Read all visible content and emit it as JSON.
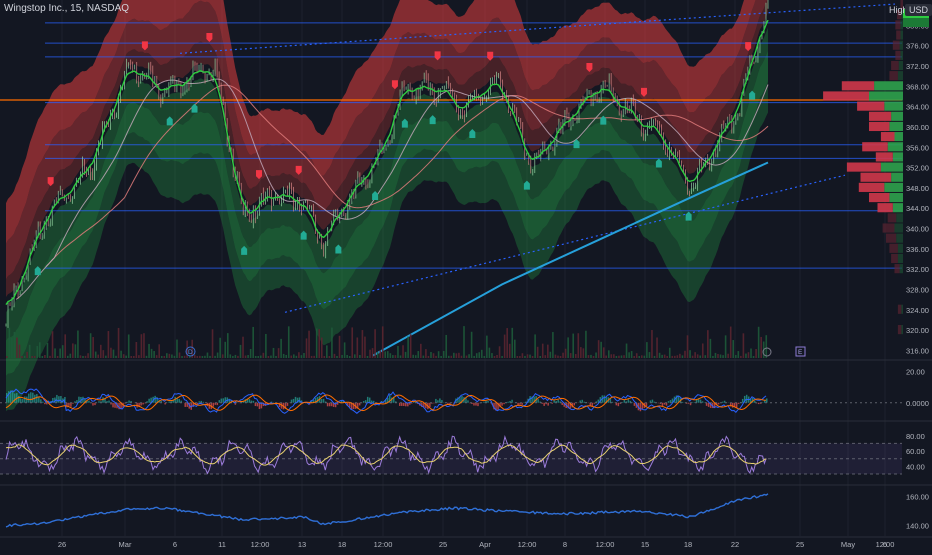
{
  "symbol": {
    "title": "Wingstop Inc., 15, NASDAQ"
  },
  "scale_buttons": {
    "high": "High",
    "currency": "USD"
  },
  "colors": {
    "background": "#131722",
    "grid": "#1e222d",
    "price": "#2ecc40",
    "upper_band": "#e03e3e",
    "lower_band": "#26a64a",
    "trendline": "#4f8fdb",
    "level_line": "#2962ff",
    "orange_level": "#ff6d00",
    "rsi": "#9c7cdb",
    "rsi_signal": "#e8d16f",
    "obv": "#2f6fd6",
    "ma_slow": "#e07b7b",
    "ma_mid": "#c0a6b7",
    "ma_long": "#26a0da"
  },
  "time_axis": {
    "labels": [
      "26",
      "Mar",
      "6",
      "11",
      "12:00",
      "13",
      "18",
      "12:00",
      "25",
      "Apr",
      "12:00",
      "8",
      "12:00",
      "15",
      "18",
      "22",
      "25",
      "May",
      "6",
      "12:00"
    ]
  },
  "main_chart": {
    "markers": [
      "D",
      "E"
    ]
  },
  "chart_data": [
    {
      "type": "line",
      "y_ticks": [
        "380.00",
        "376.00",
        "372.00",
        "368.00",
        "364.00",
        "360.00",
        "356.00",
        "352.00",
        "348.00",
        "344.00",
        "340.00",
        "336.00",
        "332.00",
        "328.00",
        "324.00",
        "320.00",
        "316.00"
      ],
      "ylim": [
        314.5,
        385
      ],
      "series": [
        {
          "points": [
            [
              0,
              322
            ],
            [
              40,
              342
            ],
            [
              85,
              352
            ],
            [
              125,
              372
            ],
            [
              160,
              367
            ],
            [
              210,
              372
            ],
            [
              240,
              342
            ],
            [
              270,
              347
            ],
            [
              300,
              345
            ],
            [
              320,
              337
            ],
            [
              340,
              344
            ],
            [
              380,
              355
            ],
            [
              400,
              367
            ],
            [
              440,
              368
            ],
            [
              460,
              363
            ],
            [
              480,
              367
            ],
            [
              500,
              369
            ],
            [
              530,
              352
            ],
            [
              575,
              363
            ],
            [
              600,
              368
            ],
            [
              640,
              361
            ],
            [
              660,
              359
            ],
            [
              690,
              348
            ],
            [
              740,
              364
            ],
            [
              768,
              384
            ]
          ]
        }
      ],
      "horizontal_levels": [
        380.5,
        376.5,
        373.8,
        364.8,
        356.5,
        353.8,
        343.5,
        332.2
      ],
      "orange_level": 365.3
    },
    {
      "type": "line",
      "y_ticks": [
        "20.00",
        "0.0000"
      ],
      "ylim": [
        -11,
        26
      ]
    },
    {
      "type": "line",
      "y_ticks": [
        "80.00",
        "60.00",
        "40.00"
      ],
      "ylim": [
        17,
        98
      ]
    },
    {
      "type": "line",
      "y_ticks": [
        "160.00",
        "140.00"
      ],
      "ylim": [
        133,
        167
      ],
      "series": [
        {
          "points": [
            [
              0,
              140
            ],
            [
              40,
              142
            ],
            [
              120,
              151
            ],
            [
              160,
              152
            ],
            [
              240,
              144
            ],
            [
              300,
              146
            ],
            [
              320,
              141
            ],
            [
              400,
              149
            ],
            [
              450,
              152
            ],
            [
              500,
              150
            ],
            [
              560,
              148
            ],
            [
              640,
              150
            ],
            [
              690,
              146
            ],
            [
              740,
              158
            ],
            [
              768,
              161
            ]
          ]
        }
      ]
    }
  ]
}
